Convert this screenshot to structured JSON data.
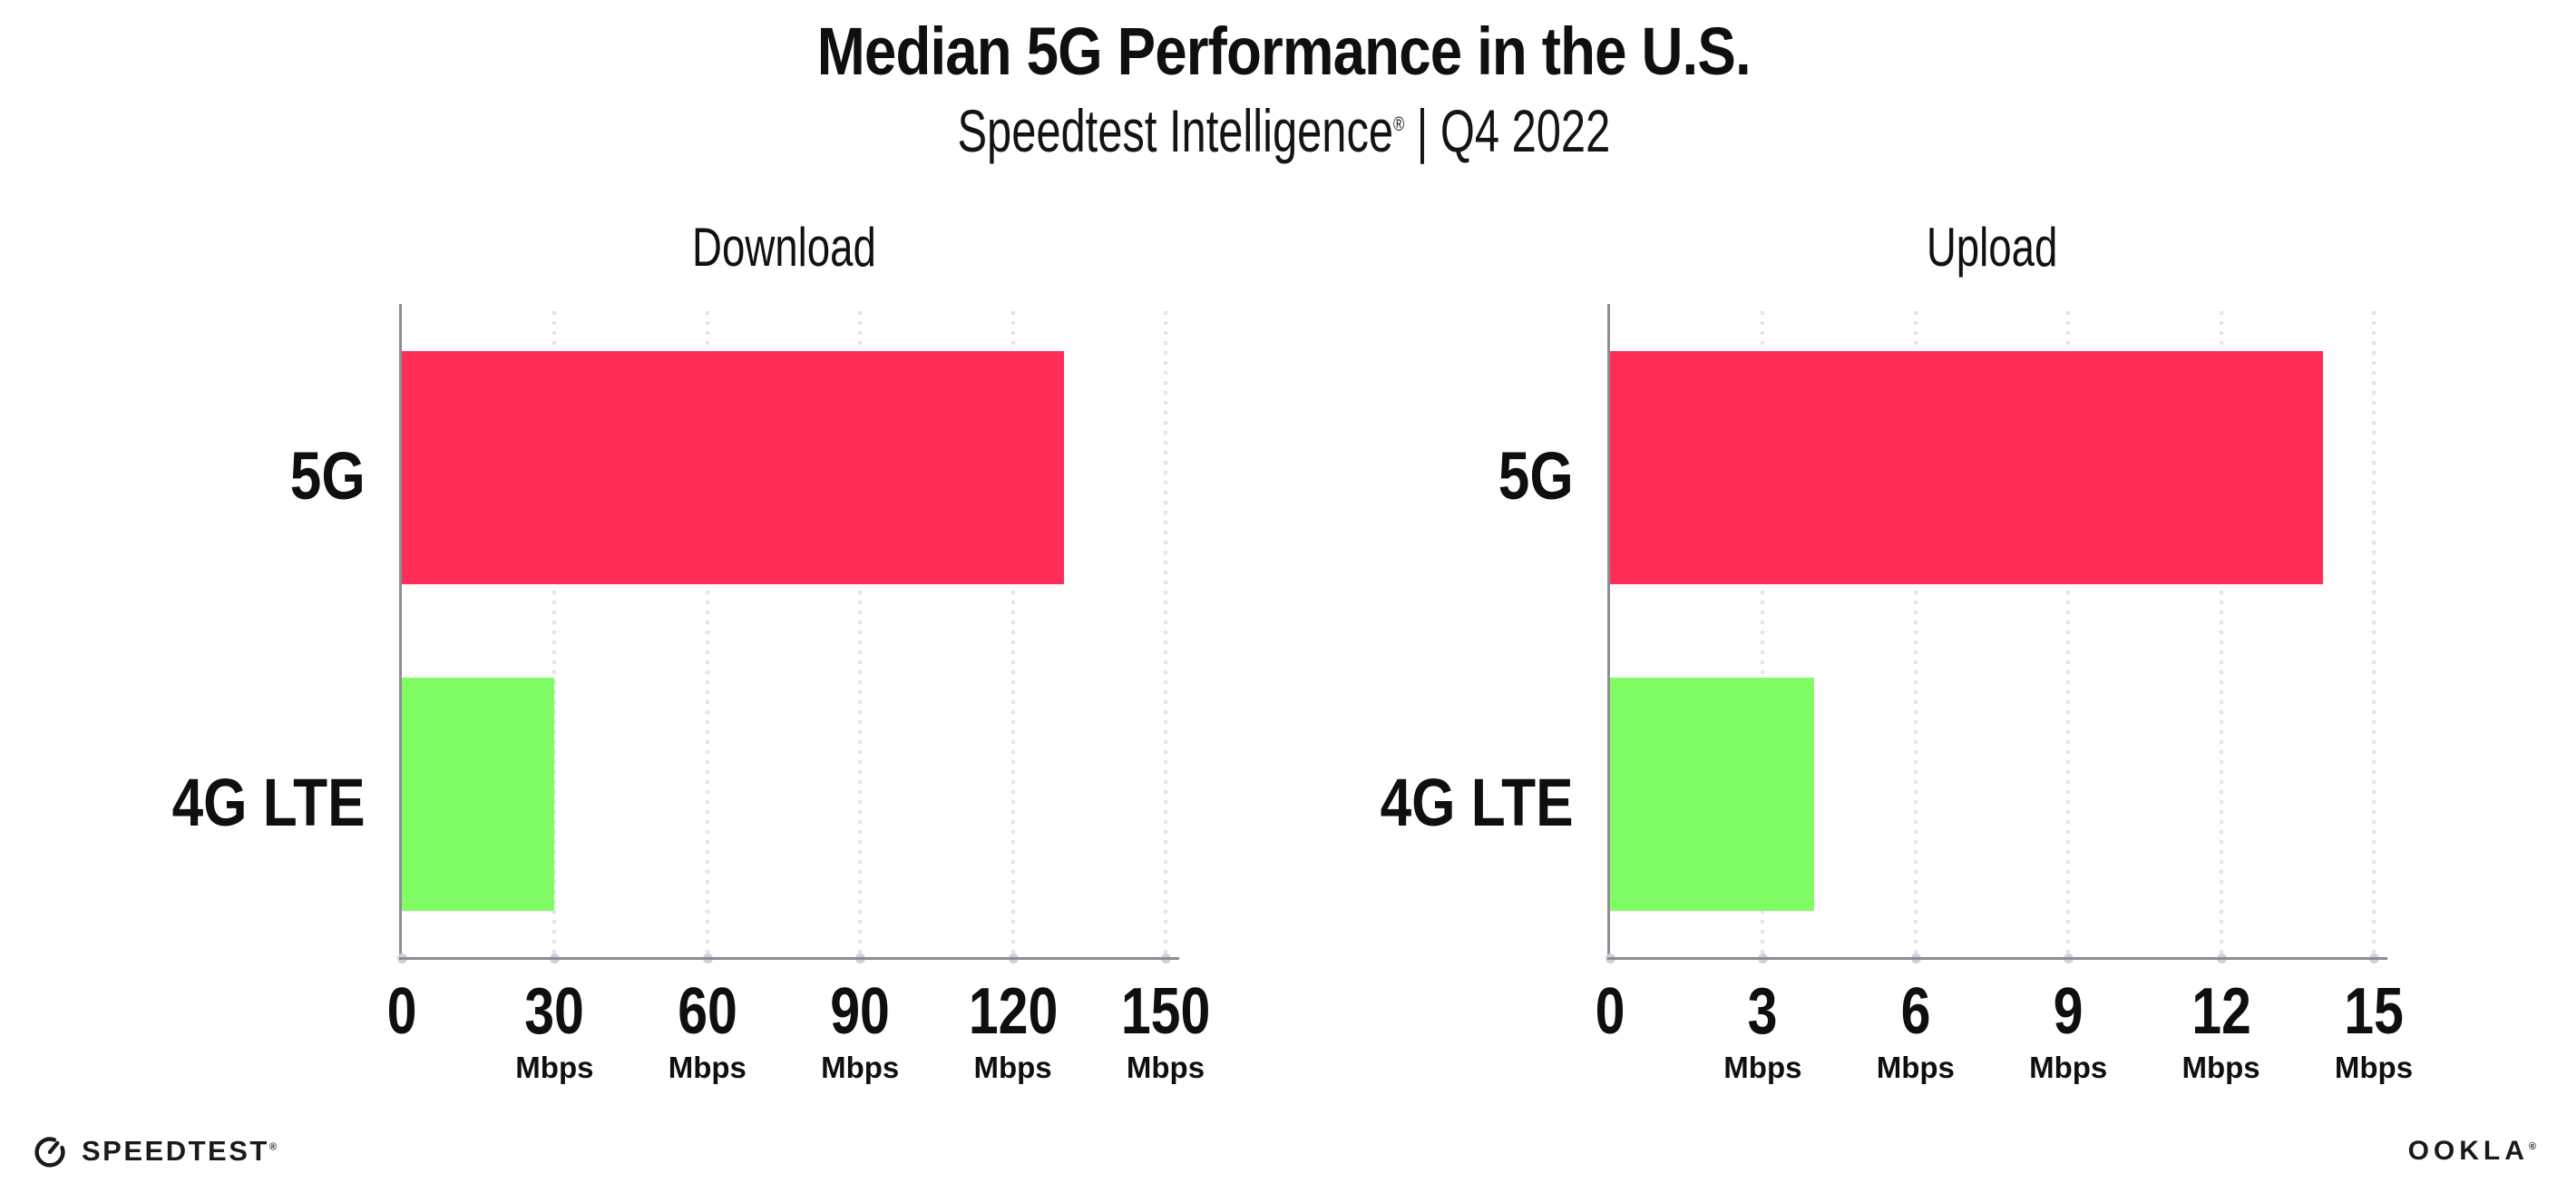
{
  "header": {
    "title": "Median 5G Performance in the U.S.",
    "subtitle_brand": "Speedtest Intelligence",
    "subtitle_reg": "®",
    "subtitle_suffix": "| Q4 2022"
  },
  "footer": {
    "speedtest_label": "SPEEDTEST",
    "speedtest_reg": "®",
    "speedtest_icon": "gauge-icon",
    "ookla_label": "OOKLA",
    "ookla_reg": "®"
  },
  "colors": {
    "bar_5g": "#ff2e58",
    "bar_4g_lte": "#80fc64",
    "axis": "#8d8d92",
    "gridline_dot": "#e3e3ec",
    "axis_tick_dot": "#cdd1de",
    "text": "#0f0f0f"
  },
  "chart_data": [
    {
      "type": "bar",
      "orientation": "horizontal",
      "title": "Download",
      "categories": [
        "5G",
        "4G LTE"
      ],
      "values": [
        130,
        30
      ],
      "unit": "Mbps",
      "xlim": [
        0,
        150
      ],
      "xticks": [
        0,
        30,
        60,
        90,
        120,
        150
      ],
      "grid": "vertical-dotted",
      "legend": "none",
      "bar_colors": [
        "#ff2e58",
        "#80fc64"
      ]
    },
    {
      "type": "bar",
      "orientation": "horizontal",
      "title": "Upload",
      "categories": [
        "5G",
        "4G LTE"
      ],
      "values": [
        14,
        4
      ],
      "unit": "Mbps",
      "xlim": [
        0,
        15
      ],
      "xticks": [
        0,
        3,
        6,
        9,
        12,
        15
      ],
      "grid": "vertical-dotted",
      "legend": "none",
      "bar_colors": [
        "#ff2e58",
        "#80fc64"
      ]
    }
  ]
}
